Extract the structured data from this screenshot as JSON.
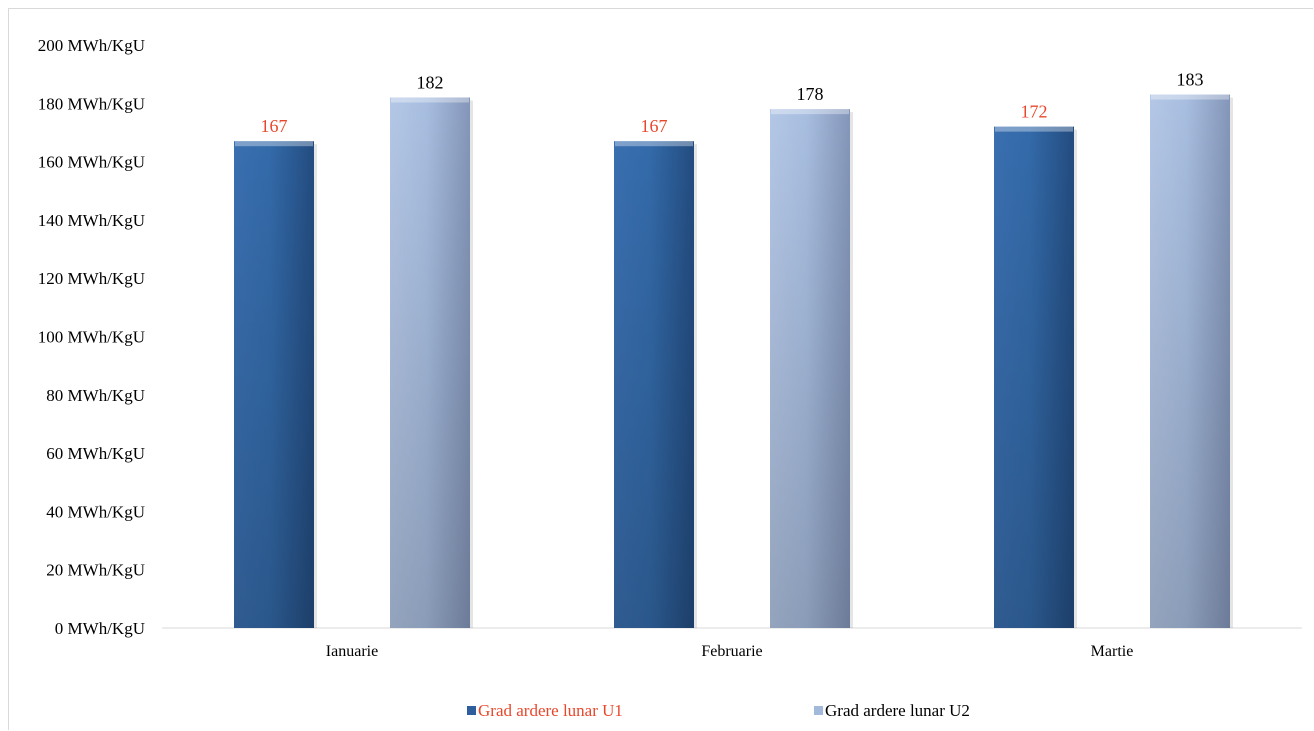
{
  "chart_data": {
    "type": "bar",
    "categories": [
      "Ianuarie",
      "Februarie",
      "Martie"
    ],
    "series": [
      {
        "name": "Grad ardere lunar U1",
        "values": [
          167,
          167,
          172
        ],
        "color": "#2e5f9c",
        "label_color": "#e8472b"
      },
      {
        "name": "Grad ardere lunar U2",
        "values": [
          182,
          178,
          183
        ],
        "color": "#a3b9dc",
        "label_color": "#000000"
      }
    ],
    "y_ticks": [
      "0 MWh/KgU",
      "20 MWh/KgU",
      "40 MWh/KgU",
      "60 MWh/KgU",
      "80 MWh/KgU",
      "100 MWh/KgU",
      "120 MWh/KgU",
      "140 MWh/KgU",
      "160 MWh/KgU",
      "180 MWh/KgU",
      "200 MWh/KgU"
    ],
    "ylim": [
      0,
      200
    ],
    "ystep": 20,
    "grid": false,
    "legend_position": "bottom",
    "title": "",
    "xlabel": "",
    "ylabel": ""
  }
}
